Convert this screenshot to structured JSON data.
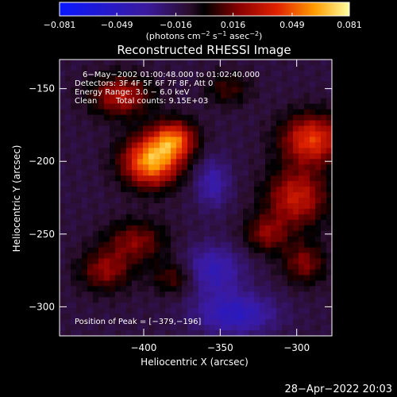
{
  "chart_data": {
    "type": "heatmap",
    "title": "Reconstructed RHESSI Image",
    "xlabel": "Heliocentric X (arcsec)",
    "ylabel": "Heliocentric Y (arcsec)",
    "xlim": [
      -455,
      -277
    ],
    "ylim": [
      -320,
      -130
    ],
    "x_ticks": [
      {
        "v": -400,
        "label": "−400"
      },
      {
        "v": -350,
        "label": "−350"
      },
      {
        "v": -300,
        "label": "−300"
      }
    ],
    "y_ticks": [
      {
        "v": -150,
        "label": "−150"
      },
      {
        "v": -200,
        "label": "−200"
      },
      {
        "v": -250,
        "label": "−250"
      },
      {
        "v": -300,
        "label": "−300"
      }
    ],
    "colorbar": {
      "min": -0.081,
      "max": 0.081,
      "ticks": [
        {
          "v": -0.081,
          "label": "−0.081"
        },
        {
          "v": -0.049,
          "label": "−0.049"
        },
        {
          "v": -0.016,
          "label": "−0.016"
        },
        {
          "v": 0.016,
          "label": "0.016"
        },
        {
          "v": 0.049,
          "label": "0.049"
        },
        {
          "v": 0.081,
          "label": "0.081"
        }
      ],
      "unit_label": {
        "pre": "(photons cm",
        "sup1": "−2",
        "mid1": " s",
        "sup2": "−1",
        "mid2": " asec",
        "sup3": "−2",
        "post": ")"
      }
    },
    "annotations": [
      "6−May−2002 01:00:48.000 to 01:02:40.000",
      "Detectors: 3F 4F 5F 6F 7F 8F, Att 0",
      "Energy Range: 3.0 − 6.0 keV",
      "Clean",
      "Total counts: 9.15E+03"
    ],
    "peak_label": "Position of Peak = [−379,−196]",
    "sources": [
      {
        "x": -395,
        "y": -200,
        "amp": 0.075,
        "sx": 13,
        "sy": 12
      },
      {
        "x": -380,
        "y": -185,
        "amp": 0.055,
        "sx": 10,
        "sy": 9
      },
      {
        "x": -415,
        "y": -155,
        "amp": 0.04,
        "sx": 14,
        "sy": 10
      },
      {
        "x": -405,
        "y": -255,
        "amp": 0.03,
        "sx": 14,
        "sy": 10
      },
      {
        "x": -425,
        "y": -275,
        "amp": 0.032,
        "sx": 12,
        "sy": 10
      },
      {
        "x": -380,
        "y": -280,
        "amp": 0.025,
        "sx": 10,
        "sy": 8
      },
      {
        "x": -290,
        "y": -185,
        "amp": 0.055,
        "sx": 14,
        "sy": 12
      },
      {
        "x": -300,
        "y": -225,
        "amp": 0.045,
        "sx": 14,
        "sy": 14
      },
      {
        "x": -295,
        "y": -270,
        "amp": 0.03,
        "sx": 10,
        "sy": 10
      },
      {
        "x": -320,
        "y": -250,
        "amp": 0.03,
        "sx": 10,
        "sy": 9
      },
      {
        "x": -345,
        "y": -150,
        "amp": 0.02,
        "sx": 10,
        "sy": 8
      },
      {
        "x": -355,
        "y": -275,
        "amp": -0.03,
        "sx": 14,
        "sy": 12
      },
      {
        "x": -340,
        "y": -305,
        "amp": -0.035,
        "sx": 18,
        "sy": 10
      },
      {
        "x": -355,
        "y": -215,
        "amp": -0.025,
        "sx": 8,
        "sy": 12
      }
    ],
    "grid": false
  },
  "timestamp": "28−Apr−2022 20:03"
}
